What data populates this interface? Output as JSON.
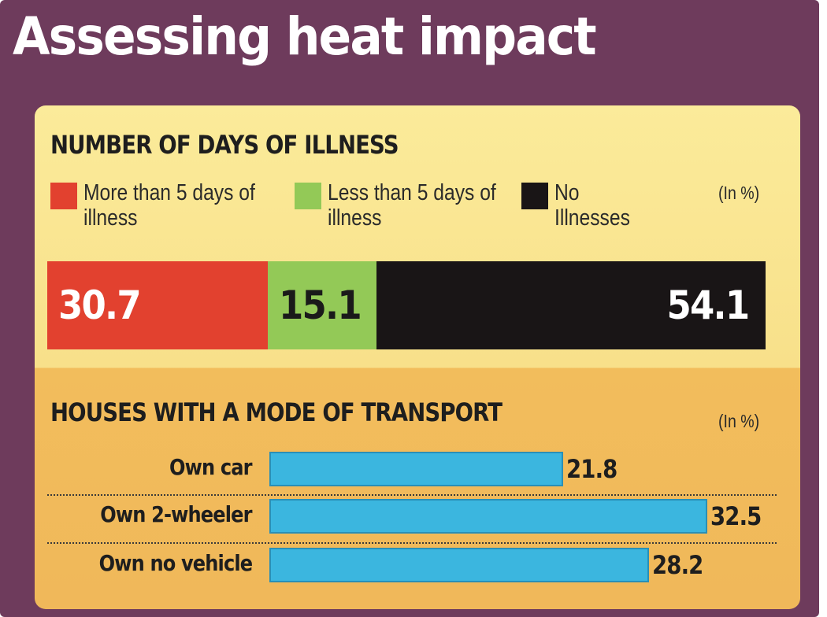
{
  "title": "Assessing heat impact",
  "chart_data": [
    {
      "type": "bar",
      "subtype": "stacked-100",
      "title": "NUMBER OF DAYS OF ILLNESS",
      "unit": "(In %)",
      "legend_placement": "top",
      "series": [
        {
          "name": "More than 5 days of illness",
          "value": 30.7,
          "label": "30.7",
          "color": "#e2412f",
          "label_color": "#ffffff"
        },
        {
          "name": "Less than 5 days of illness",
          "value": 15.1,
          "label": "15.1",
          "color": "#93c957",
          "label_color": "#1a1a1a"
        },
        {
          "name": "No Illnesses",
          "value": 54.1,
          "label": "54.1",
          "color": "#191516",
          "label_color": "#ffffff"
        }
      ]
    },
    {
      "type": "bar",
      "orientation": "horizontal",
      "title": "HOUSES WITH A MODE OF TRANSPORT",
      "unit": "(In %)",
      "xlim": [
        0,
        32.5
      ],
      "color": "#3bb6df",
      "categories": [
        "Own car",
        "Own 2-wheeler",
        "Own no vehicle"
      ],
      "values": [
        21.8,
        32.5,
        28.2
      ],
      "value_labels": [
        "21.8",
        "32.5",
        "28.2"
      ]
    }
  ]
}
